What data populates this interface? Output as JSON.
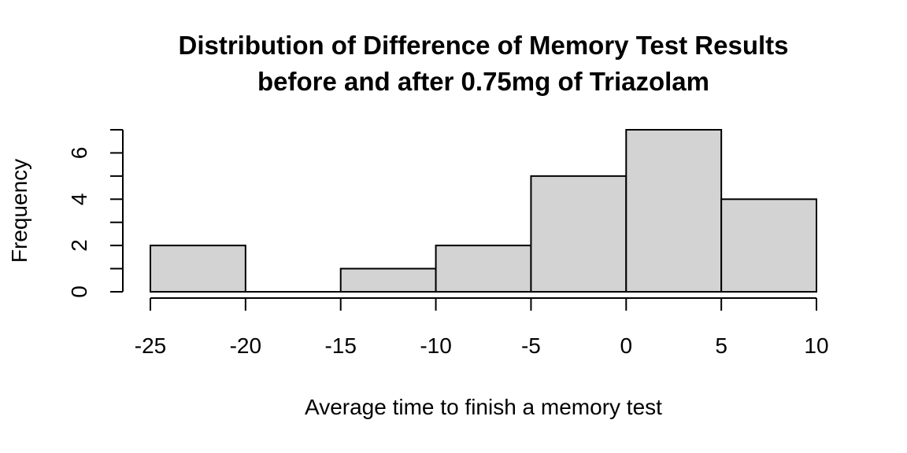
{
  "chart_data": {
    "type": "bar",
    "subtype": "histogram",
    "title_lines": [
      "Distribution of Difference of Memory Test Results",
      "before and after 0.75mg of Triazolam"
    ],
    "xlabel": "Average time to finish a memory test",
    "ylabel": "Frequency",
    "bins": [
      {
        "from": -25,
        "to": -20,
        "count": 2
      },
      {
        "from": -20,
        "to": -15,
        "count": 0
      },
      {
        "from": -15,
        "to": -10,
        "count": 1
      },
      {
        "from": -10,
        "to": -5,
        "count": 2
      },
      {
        "from": -5,
        "to": 0,
        "count": 5
      },
      {
        "from": 0,
        "to": 5,
        "count": 7
      },
      {
        "from": 5,
        "to": 10,
        "count": 4
      }
    ],
    "x_ticks": [
      -25,
      -20,
      -15,
      -10,
      -5,
      0,
      5,
      10
    ],
    "x_tick_labels": [
      "-25",
      "-20",
      "-15",
      "-10",
      "-5",
      "0",
      "5",
      "10"
    ],
    "y_ticks": [
      0,
      1,
      2,
      3,
      4,
      5,
      6,
      7
    ],
    "y_tick_labels": [
      {
        "value": 0,
        "label": "0"
      },
      {
        "value": 2,
        "label": "2"
      },
      {
        "value": 4,
        "label": "4"
      },
      {
        "value": 6,
        "label": "6"
      }
    ],
    "xlim": [
      -25,
      10
    ],
    "ylim": [
      0,
      7
    ],
    "bar_color": "#d3d3d3",
    "bar_border_color": "#000000",
    "grid": false,
    "legend": "none"
  }
}
